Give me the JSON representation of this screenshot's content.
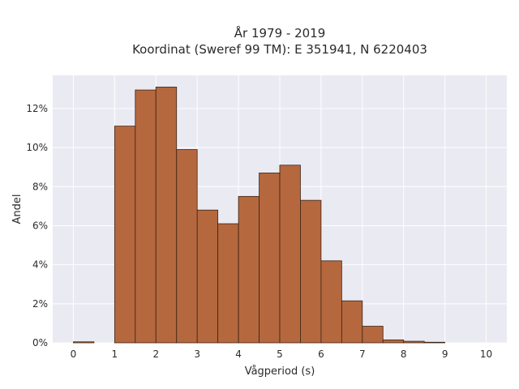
{
  "chart_data": {
    "type": "bar",
    "title_line1": "År 1979 - 2019",
    "title_line2": "Koordinat (Sweref 99 TM): E 351941, N 6220403",
    "xlabel": "Vågperiod (s)",
    "ylabel": "Andel",
    "xlim": [
      -0.5,
      10.5
    ],
    "ylim": [
      0,
      13.7
    ],
    "xticks": [
      0,
      1,
      2,
      3,
      4,
      5,
      6,
      7,
      8,
      9,
      10
    ],
    "xtick_labels": [
      "0",
      "1",
      "2",
      "3",
      "4",
      "5",
      "6",
      "7",
      "8",
      "9",
      "10"
    ],
    "yticks": [
      0,
      2,
      4,
      6,
      8,
      10,
      12
    ],
    "ytick_labels": [
      "0%",
      "2%",
      "4%",
      "6%",
      "8%",
      "10%",
      "12%"
    ],
    "bin_width": 0.5,
    "bin_starts": [
      0,
      0.5,
      1,
      1.5,
      2,
      2.5,
      3,
      3.5,
      4,
      4.5,
      5,
      5.5,
      6,
      6.5,
      7,
      7.5,
      8,
      8.5,
      9,
      9.5
    ],
    "values": [
      0.05,
      0,
      11.1,
      12.95,
      13.1,
      9.9,
      6.8,
      6.1,
      7.5,
      8.7,
      9.1,
      7.3,
      4.2,
      2.15,
      0.85,
      0.15,
      0.08,
      0.03,
      0,
      0
    ],
    "colors": {
      "bar_fill": "#b5683e",
      "bar_edge": "#3a2416",
      "plot_bg": "#eaeaf2",
      "grid": "#ffffff",
      "text": "#2b2b2b"
    },
    "grid": true
  }
}
